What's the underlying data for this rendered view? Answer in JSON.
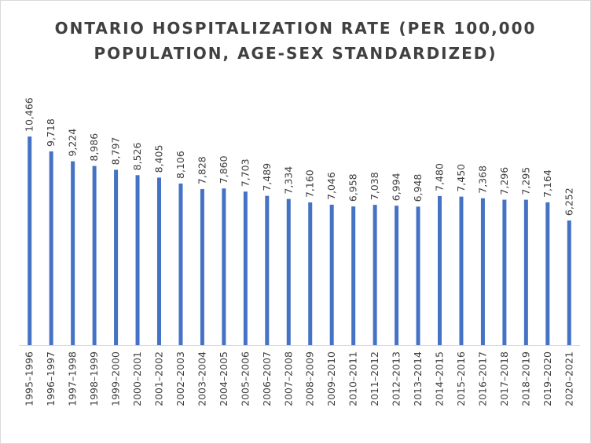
{
  "chart_data": {
    "type": "bar",
    "title": "ONTARIO HOSPITALIZATION RATE (PER 100,000 POPULATION, AGE-SEX STANDARDIZED)",
    "xlabel": "",
    "ylabel": "",
    "categories": [
      "1995–1996",
      "1996–1997",
      "1997–1998",
      "1998–1999",
      "1999–2000",
      "2000–2001",
      "2001–2002",
      "2002–2003",
      "2003–2004",
      "2004–2005",
      "2005–2006",
      "2006–2007",
      "2007–2008",
      "2008–2009",
      "2009–2010",
      "2010–2011",
      "2011–2012",
      "2012–2013",
      "2013–2014",
      "2014–2015",
      "2015–2016",
      "2016–2017",
      "2017–2018",
      "2018–2019",
      "2019–2020",
      "2020–2021"
    ],
    "values": [
      10466,
      9718,
      9224,
      8986,
      8797,
      8526,
      8405,
      8106,
      7828,
      7860,
      7703,
      7489,
      7334,
      7160,
      7046,
      6958,
      7038,
      6994,
      6948,
      7480,
      7450,
      7368,
      7296,
      7295,
      7164,
      6252
    ],
    "data_labels": [
      "10,466",
      "9,718",
      "9,224",
      "8,986",
      "8,797",
      "8,526",
      "8,405",
      "8,106",
      "7,828",
      "7,860",
      "7,703",
      "7,489",
      "7,334",
      "7,160",
      "7,046",
      "6,958",
      "7,038",
      "6,994",
      "6,948",
      "7,480",
      "7,450",
      "7,368",
      "7,296",
      "7,295",
      "7,164",
      "6,252"
    ],
    "ylim": [
      0,
      12000
    ],
    "grid": false,
    "legend": "none",
    "bar_color": "#4472c4",
    "axis_color": "#d9d9d9",
    "text_color": "#404040"
  }
}
